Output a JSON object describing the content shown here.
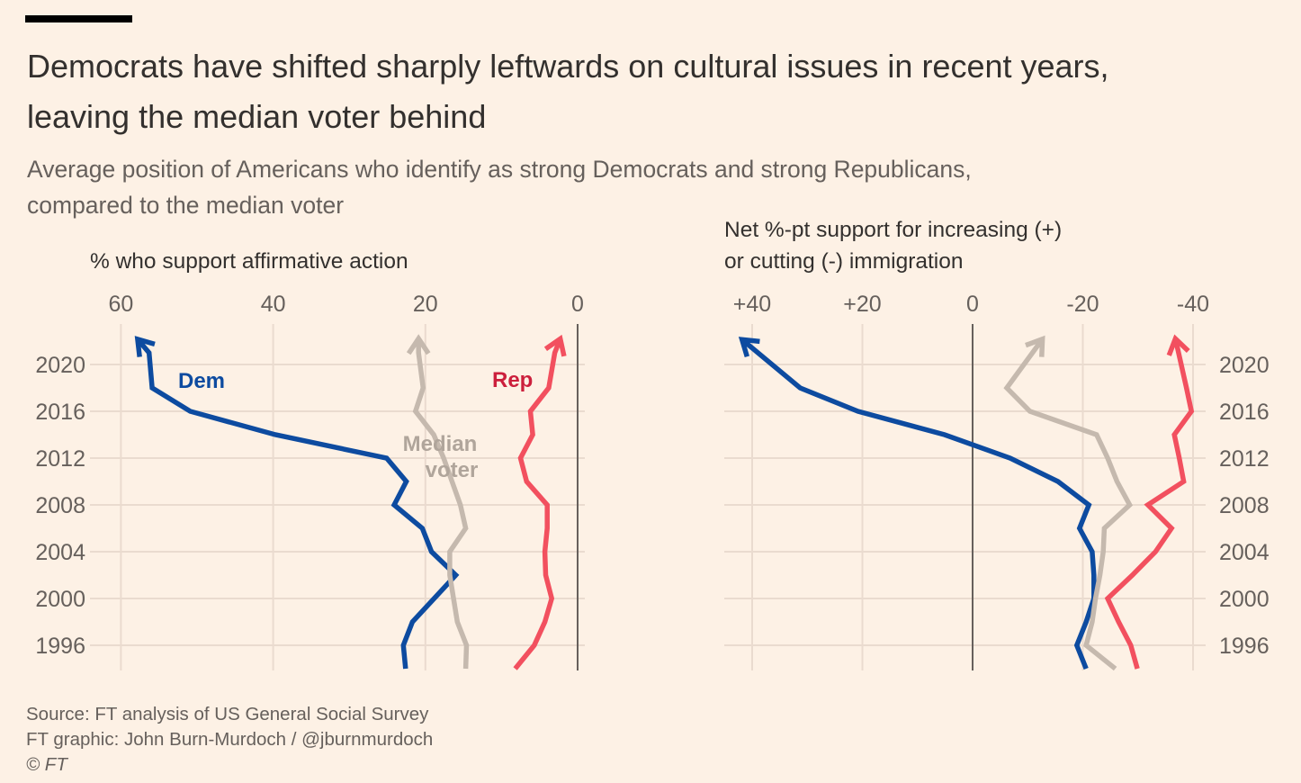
{
  "header": {
    "title_line1": "Democrats have shifted sharply leftwards on cultural issues in recent years,",
    "title_line2": "leaving the median voter behind",
    "subtitle_line1": "Average position of Americans who identify as strong Democrats and strong Republicans,",
    "subtitle_line2": "compared to the median voter"
  },
  "footer": {
    "source": "Source: FT analysis of US General Social Survey",
    "credit": "FT graphic: John Burn-Murdoch / @jburnmurdoch",
    "copyright": "© FT"
  },
  "colors": {
    "dem": "#0d4ba0",
    "rep": "#f2505f",
    "median": "#c5b9ae",
    "rep_label": "#cc1f3c",
    "median_label": "#b0a59b",
    "grid": "#eadbcf",
    "zero": "#66605c"
  },
  "series_labels": {
    "dem": "Dem",
    "rep": "Rep",
    "median_line1": "Median",
    "median_line2": "voter"
  },
  "chart_data": [
    {
      "type": "line",
      "title": "% who support affirmative action",
      "x_axis": "value (reversed)",
      "xlim": [
        60,
        0
      ],
      "x_ticks": [
        "60",
        "40",
        "20",
        "0"
      ],
      "y_ticks": [
        "2020",
        "2016",
        "2012",
        "2008",
        "2004",
        "2000",
        "1996"
      ],
      "ylim": [
        1994,
        2022
      ],
      "series": [
        {
          "name": "Dem",
          "key": "dem",
          "points": [
            [
              1994,
              22.6
            ],
            [
              1996,
              22.9
            ],
            [
              1998,
              21.7
            ],
            [
              2002,
              16.0
            ],
            [
              2004,
              19.2
            ],
            [
              2006,
              20.4
            ],
            [
              2008,
              24.1
            ],
            [
              2010,
              22.5
            ],
            [
              2012,
              25.1
            ],
            [
              2014,
              39.7
            ],
            [
              2016,
              50.9
            ],
            [
              2018,
              55.9
            ],
            [
              2021,
              56.3
            ],
            [
              2022,
              57.6
            ]
          ]
        },
        {
          "name": "Median voter",
          "key": "median",
          "points": [
            [
              1994,
              14.7
            ],
            [
              1996,
              14.6
            ],
            [
              1998,
              15.8
            ],
            [
              2002,
              16.8
            ],
            [
              2004,
              16.8
            ],
            [
              2006,
              14.7
            ],
            [
              2008,
              15.4
            ],
            [
              2010,
              16.5
            ],
            [
              2012,
              17.6
            ],
            [
              2014,
              18.9
            ],
            [
              2016,
              21.3
            ],
            [
              2018,
              20.3
            ],
            [
              2021,
              20.9
            ],
            [
              2022,
              20.9
            ]
          ]
        },
        {
          "name": "Rep",
          "key": "rep",
          "points": [
            [
              1994,
              8.2
            ],
            [
              1996,
              5.7
            ],
            [
              1998,
              4.3
            ],
            [
              2000,
              3.4
            ],
            [
              2002,
              4.2
            ],
            [
              2004,
              4.3
            ],
            [
              2006,
              4.0
            ],
            [
              2008,
              4.0
            ],
            [
              2010,
              6.7
            ],
            [
              2012,
              7.5
            ],
            [
              2014,
              5.9
            ],
            [
              2016,
              6.2
            ],
            [
              2018,
              3.8
            ],
            [
              2021,
              3.0
            ],
            [
              2022,
              2.4
            ]
          ]
        }
      ]
    },
    {
      "type": "line",
      "title_line1": "Net %-pt support for increasing (+)",
      "title_line2": "or cutting (-) immigration",
      "xlim": [
        40,
        -40
      ],
      "x_ticks": [
        "+40",
        "+20",
        "0",
        "-20",
        "-40"
      ],
      "y_ticks": [
        "2020",
        "2016",
        "2012",
        "2008",
        "2004",
        "2000",
        "1996"
      ],
      "ylim": [
        1994,
        2022
      ],
      "series": [
        {
          "name": "Dem",
          "key": "dem",
          "points": [
            [
              1994,
              -20.6
            ],
            [
              1996,
              -18.9
            ],
            [
              1998,
              -20.6
            ],
            [
              2000,
              -22.0
            ],
            [
              2002,
              -22.0
            ],
            [
              2004,
              -21.7
            ],
            [
              2006,
              -19.4
            ],
            [
              2008,
              -21.1
            ],
            [
              2010,
              -15.5
            ],
            [
              2012,
              -6.8
            ],
            [
              2014,
              5.1
            ],
            [
              2016,
              20.8
            ],
            [
              2018,
              31.3
            ],
            [
              2022,
              41.5
            ]
          ]
        },
        {
          "name": "Median voter",
          "key": "median",
          "points": [
            [
              1994,
              -25.9
            ],
            [
              1996,
              -20.6
            ],
            [
              1998,
              -21.7
            ],
            [
              2000,
              -22.3
            ],
            [
              2002,
              -23.1
            ],
            [
              2004,
              -23.7
            ],
            [
              2006,
              -23.9
            ],
            [
              2008,
              -28.5
            ],
            [
              2010,
              -26.2
            ],
            [
              2012,
              -24.5
            ],
            [
              2014,
              -22.5
            ],
            [
              2016,
              -10.4
            ],
            [
              2018,
              -6.2
            ],
            [
              2022,
              -12.4
            ]
          ]
        },
        {
          "name": "Rep",
          "key": "rep",
          "points": [
            [
              1994,
              -29.9
            ],
            [
              1996,
              -28.7
            ],
            [
              1998,
              -26.5
            ],
            [
              2000,
              -24.5
            ],
            [
              2002,
              -29.0
            ],
            [
              2004,
              -33.2
            ],
            [
              2006,
              -36.1
            ],
            [
              2008,
              -31.8
            ],
            [
              2010,
              -38.3
            ],
            [
              2012,
              -37.5
            ],
            [
              2014,
              -36.6
            ],
            [
              2016,
              -39.7
            ],
            [
              2018,
              -38.8
            ],
            [
              2022,
              -36.9
            ]
          ]
        }
      ]
    }
  ]
}
